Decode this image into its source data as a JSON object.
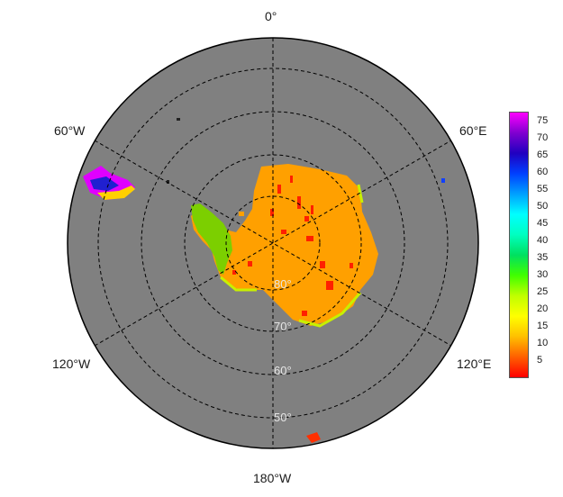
{
  "map": {
    "projection": "south-polar-stereographic",
    "ocean_color": "#808080",
    "land_color": "#FFA000",
    "graticule_color": "#000000",
    "longitude_labels": {
      "top": "0°",
      "left_upper": "60°W",
      "right_upper": "60°E",
      "left_lower": "120°W",
      "right_lower": "120°E",
      "bottom": "180°W"
    },
    "latitude_labels": [
      "80°",
      "70°",
      "60°",
      "50°"
    ]
  },
  "colorbar": {
    "ticks": [
      "75",
      "70",
      "65",
      "60",
      "55",
      "50",
      "45",
      "40",
      "35",
      "30",
      "25",
      "20",
      "15",
      "10",
      "5"
    ],
    "min": 0,
    "max": 78,
    "colors": [
      "#FF0000",
      "#FF6000",
      "#FFC000",
      "#FFFF00",
      "#C0FF00",
      "#40FF00",
      "#00E060",
      "#00FFC0",
      "#00FFFF",
      "#00A0FF",
      "#0040FF",
      "#2000C0",
      "#8000D0",
      "#FF00FF"
    ]
  }
}
